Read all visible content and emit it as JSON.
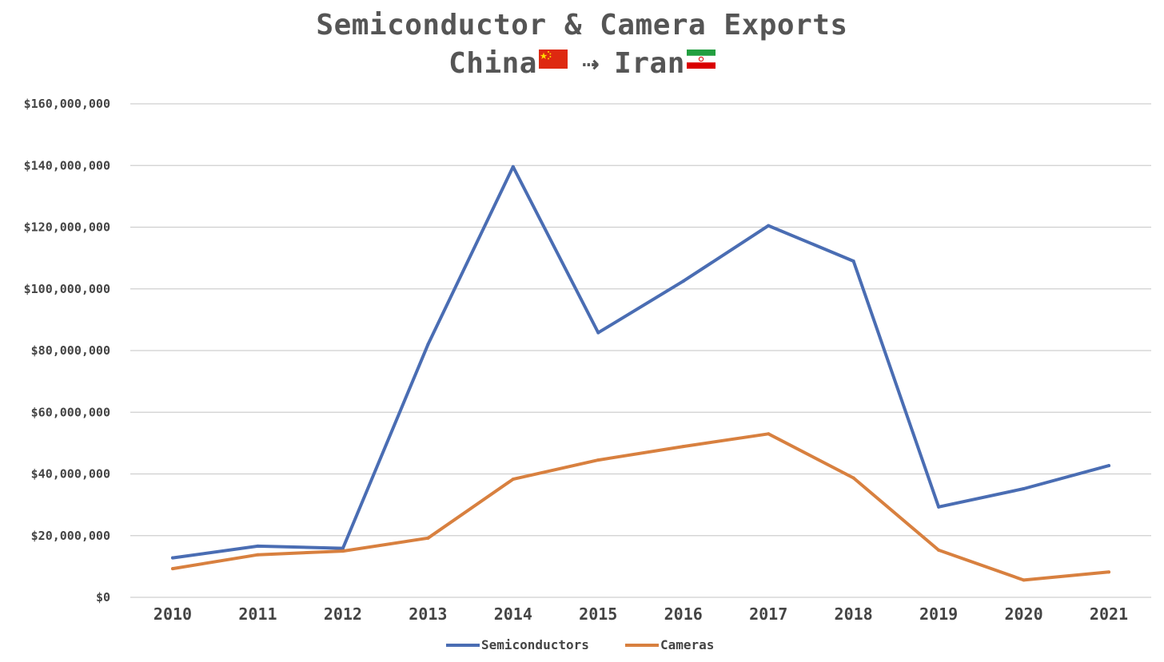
{
  "chart_data": {
    "type": "line",
    "title": "Semiconductor & Camera Exports",
    "subtitle": {
      "from": "China",
      "arrow": "⇢",
      "to": "Iran"
    },
    "xlabel": "",
    "ylabel": "",
    "categories": [
      "2010",
      "2011",
      "2012",
      "2013",
      "2014",
      "2015",
      "2016",
      "2017",
      "2018",
      "2019",
      "2020",
      "2021"
    ],
    "series": [
      {
        "name": "Semiconductors",
        "color": "#4a6db3",
        "values": [
          12800000,
          16600000,
          15900000,
          82000000,
          139600000,
          85800000,
          102500000,
          120500000,
          109000000,
          29300000,
          35200000,
          42700000
        ]
      },
      {
        "name": "Cameras",
        "color": "#d8803f",
        "values": [
          9300000,
          13800000,
          15000000,
          19200000,
          38300000,
          44500000,
          48900000,
          53000000,
          38700000,
          15300000,
          5600000,
          8200000
        ]
      }
    ],
    "ylim": [
      0,
      160000000
    ],
    "yticks": [
      "$0",
      "$20,000,000",
      "$40,000,000",
      "$60,000,000",
      "$80,000,000",
      "$100,000,000",
      "$120,000,000",
      "$140,000,000",
      "$160,000,000"
    ],
    "grid": true,
    "legend_position": "bottom"
  },
  "flags": {
    "china": "china-flag",
    "iran": "iran-flag"
  }
}
